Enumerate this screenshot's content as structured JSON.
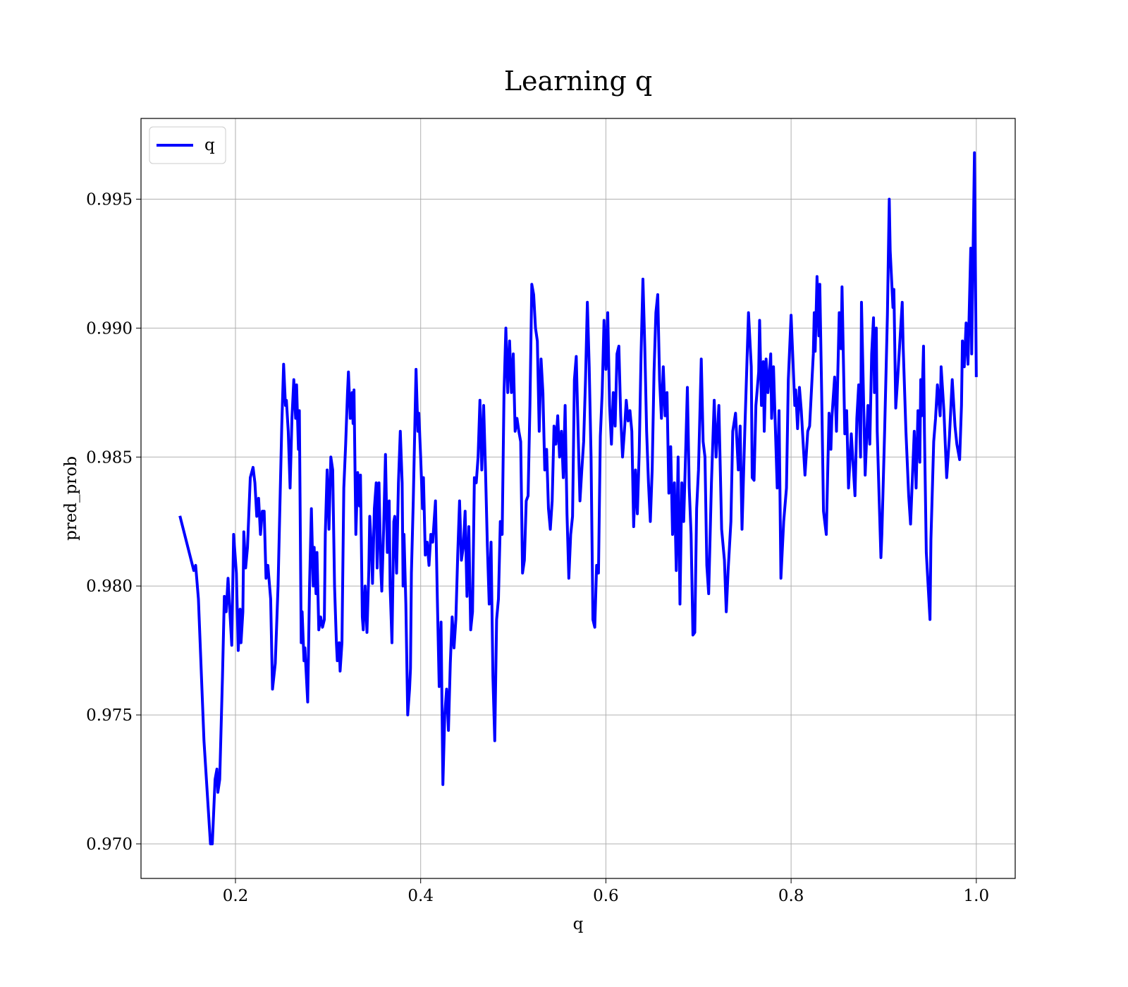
{
  "chart_data": {
    "type": "line",
    "title": "Learning q",
    "xlabel": "q",
    "ylabel": "pred_prob",
    "x": [
      0.14,
      0.155,
      0.157,
      0.16,
      0.166,
      0.173,
      0.175,
      0.178,
      0.18,
      0.181,
      0.183,
      0.186,
      0.188,
      0.19,
      0.192,
      0.194,
      0.196,
      0.198,
      0.201,
      0.203,
      0.205,
      0.206,
      0.208,
      0.209,
      0.211,
      0.213,
      0.216,
      0.219,
      0.221,
      0.223,
      0.225,
      0.227,
      0.229,
      0.231,
      0.233,
      0.235,
      0.238,
      0.24,
      0.243,
      0.246,
      0.248,
      0.25,
      0.252,
      0.254,
      0.255,
      0.257,
      0.259,
      0.261,
      0.263,
      0.265,
      0.266,
      0.268,
      0.269,
      0.271,
      0.272,
      0.274,
      0.275,
      0.278,
      0.28,
      0.282,
      0.284,
      0.285,
      0.287,
      0.288,
      0.29,
      0.292,
      0.294,
      0.296,
      0.297,
      0.299,
      0.301,
      0.303,
      0.305,
      0.307,
      0.309,
      0.31,
      0.312,
      0.313,
      0.315,
      0.317,
      0.319,
      0.321,
      0.322,
      0.324,
      0.326,
      0.327,
      0.328,
      0.33,
      0.332,
      0.334,
      0.335,
      0.337,
      0.338,
      0.34,
      0.342,
      0.344,
      0.345,
      0.347,
      0.348,
      0.35,
      0.352,
      0.353,
      0.355,
      0.357,
      0.358,
      0.36,
      0.362,
      0.364,
      0.366,
      0.367,
      0.369,
      0.371,
      0.372,
      0.374,
      0.376,
      0.378,
      0.38,
      0.381,
      0.382,
      0.384,
      0.386,
      0.388,
      0.389,
      0.39,
      0.392,
      0.393,
      0.395,
      0.397,
      0.398,
      0.4,
      0.402,
      0.403,
      0.405,
      0.407,
      0.409,
      0.411,
      0.413,
      0.416,
      0.418,
      0.42,
      0.422,
      0.424,
      0.426,
      0.428,
      0.43,
      0.432,
      0.434,
      0.436,
      0.438,
      0.44,
      0.442,
      0.444,
      0.446,
      0.448,
      0.45,
      0.452,
      0.454,
      0.456,
      0.458,
      0.46,
      0.462,
      0.464,
      0.466,
      0.468,
      0.47,
      0.472,
      0.474,
      0.476,
      0.478,
      0.48,
      0.482,
      0.484,
      0.486,
      0.488,
      0.49,
      0.492,
      0.494,
      0.496,
      0.498,
      0.5,
      0.502,
      0.504,
      0.506,
      0.508,
      0.51,
      0.512,
      0.514,
      0.516,
      0.518,
      0.52,
      0.522,
      0.524,
      0.526,
      0.528,
      0.53,
      0.532,
      0.534,
      0.536,
      0.538,
      0.54,
      0.542,
      0.544,
      0.546,
      0.548,
      0.55,
      0.552,
      0.554,
      0.556,
      0.558,
      0.56,
      0.562,
      0.564,
      0.566,
      0.568,
      0.57,
      0.572,
      0.574,
      0.576,
      0.578,
      0.58,
      0.582,
      0.584,
      0.586,
      0.588,
      0.59,
      0.592,
      0.594,
      0.596,
      0.598,
      0.6,
      0.602,
      0.604,
      0.606,
      0.608,
      0.61,
      0.612,
      0.614,
      0.616,
      0.618,
      0.62,
      0.622,
      0.624,
      0.626,
      0.628,
      0.63,
      0.632,
      0.634,
      0.636,
      0.638,
      0.64,
      0.642,
      0.644,
      0.646,
      0.648,
      0.65,
      0.652,
      0.654,
      0.656,
      0.658,
      0.66,
      0.662,
      0.664,
      0.666,
      0.668,
      0.67,
      0.672,
      0.674,
      0.676,
      0.678,
      0.68,
      0.682,
      0.684,
      0.686,
      0.688,
      0.69,
      0.692,
      0.694,
      0.696,
      0.698,
      0.7,
      0.703,
      0.705,
      0.707,
      0.709,
      0.711,
      0.714,
      0.717,
      0.719,
      0.722,
      0.725,
      0.728,
      0.73,
      0.732,
      0.735,
      0.737,
      0.74,
      0.743,
      0.745,
      0.747,
      0.75,
      0.754,
      0.757,
      0.758,
      0.76,
      0.762,
      0.765,
      0.766,
      0.768,
      0.77,
      0.771,
      0.773,
      0.775,
      0.778,
      0.779,
      0.781,
      0.785,
      0.787,
      0.789,
      0.792,
      0.795,
      0.797,
      0.8,
      0.804,
      0.805,
      0.807,
      0.809,
      0.811,
      0.815,
      0.818,
      0.82,
      0.824,
      0.825,
      0.826,
      0.828,
      0.83,
      0.831,
      0.833,
      0.835,
      0.838,
      0.841,
      0.843,
      0.844,
      0.847,
      0.849,
      0.852,
      0.854,
      0.855,
      0.858,
      0.86,
      0.862,
      0.865,
      0.869,
      0.871,
      0.873,
      0.875,
      0.876,
      0.88,
      0.883,
      0.885,
      0.887,
      0.889,
      0.89,
      0.892,
      0.893,
      0.895,
      0.897,
      0.898,
      0.901,
      0.904,
      0.906,
      0.907,
      0.91,
      0.911,
      0.913,
      0.915,
      0.92,
      0.921,
      0.924,
      0.927,
      0.929,
      0.933,
      0.935,
      0.937,
      0.939,
      0.94,
      0.941,
      0.943,
      0.944,
      0.946,
      0.948,
      0.95,
      0.951,
      0.954,
      0.956,
      0.958,
      0.961,
      0.962,
      0.965,
      0.968,
      0.971,
      0.974,
      0.977,
      0.979,
      0.982,
      0.984,
      0.985,
      0.987,
      0.989,
      0.991,
      0.994,
      0.995,
      0.998,
      1.0
    ],
    "series": [
      {
        "name": "q",
        "color": "#0000ff",
        "values": [
          0.98272,
          0.9806,
          0.9808,
          0.9795,
          0.974,
          0.97,
          0.97,
          0.9725,
          0.9729,
          0.972,
          0.9725,
          0.9765,
          0.9796,
          0.979,
          0.9803,
          0.979,
          0.9777,
          0.982,
          0.9805,
          0.9775,
          0.9791,
          0.9778,
          0.979,
          0.9821,
          0.9807,
          0.9815,
          0.9842,
          0.9846,
          0.984,
          0.9827,
          0.9834,
          0.982,
          0.9829,
          0.9829,
          0.9803,
          0.9808,
          0.9795,
          0.976,
          0.977,
          0.98,
          0.9831,
          0.9862,
          0.9886,
          0.987,
          0.9872,
          0.986,
          0.9838,
          0.9865,
          0.988,
          0.9865,
          0.9878,
          0.9853,
          0.9868,
          0.9778,
          0.979,
          0.9771,
          0.9776,
          0.9755,
          0.98,
          0.983,
          0.98,
          0.9815,
          0.9797,
          0.9813,
          0.9783,
          0.9788,
          0.9784,
          0.9787,
          0.982,
          0.9845,
          0.9822,
          0.985,
          0.9845,
          0.98,
          0.9778,
          0.9771,
          0.9778,
          0.9767,
          0.9778,
          0.9838,
          0.9855,
          0.9875,
          0.9883,
          0.9865,
          0.9875,
          0.9863,
          0.9876,
          0.982,
          0.9844,
          0.9831,
          0.9843,
          0.9788,
          0.9783,
          0.98,
          0.9782,
          0.9806,
          0.9827,
          0.9813,
          0.9801,
          0.983,
          0.984,
          0.9807,
          0.984,
          0.9806,
          0.9798,
          0.9822,
          0.9851,
          0.9813,
          0.9833,
          0.98,
          0.9778,
          0.9825,
          0.9827,
          0.9805,
          0.984,
          0.986,
          0.984,
          0.98,
          0.982,
          0.9793,
          0.975,
          0.976,
          0.9768,
          0.9805,
          0.9833,
          0.985,
          0.9884,
          0.986,
          0.9867,
          0.985,
          0.983,
          0.9842,
          0.9812,
          0.9817,
          0.9808,
          0.982,
          0.9817,
          0.9833,
          0.9795,
          0.9761,
          0.9786,
          0.9723,
          0.975,
          0.976,
          0.9744,
          0.977,
          0.9788,
          0.9776,
          0.9787,
          0.9812,
          0.9833,
          0.981,
          0.9815,
          0.9829,
          0.9796,
          0.9823,
          0.9783,
          0.979,
          0.9842,
          0.984,
          0.985,
          0.9872,
          0.9845,
          0.987,
          0.9845,
          0.9816,
          0.9793,
          0.9817,
          0.9765,
          0.974,
          0.9787,
          0.9795,
          0.9825,
          0.982,
          0.9875,
          0.99,
          0.9875,
          0.9895,
          0.9875,
          0.989,
          0.986,
          0.9865,
          0.986,
          0.9856,
          0.9805,
          0.981,
          0.9833,
          0.9835,
          0.987,
          0.9917,
          0.9913,
          0.99,
          0.9895,
          0.986,
          0.9888,
          0.9875,
          0.9845,
          0.9853,
          0.983,
          0.9822,
          0.9833,
          0.9862,
          0.9855,
          0.9866,
          0.985,
          0.986,
          0.9842,
          0.987,
          0.9828,
          0.9803,
          0.982,
          0.9827,
          0.988,
          0.9889,
          0.986,
          0.9833,
          0.9845,
          0.9856,
          0.988,
          0.991,
          0.9885,
          0.985,
          0.9787,
          0.9784,
          0.9808,
          0.9805,
          0.9858,
          0.9875,
          0.9903,
          0.9884,
          0.9906,
          0.987,
          0.9855,
          0.9875,
          0.9862,
          0.989,
          0.9893,
          0.9866,
          0.985,
          0.986,
          0.9872,
          0.9864,
          0.9868,
          0.986,
          0.9823,
          0.9845,
          0.9828,
          0.9852,
          0.989,
          0.9919,
          0.9893,
          0.986,
          0.984,
          0.9825,
          0.9845,
          0.9883,
          0.9906,
          0.9913,
          0.988,
          0.9865,
          0.9885,
          0.9866,
          0.9875,
          0.9836,
          0.9854,
          0.982,
          0.984,
          0.9806,
          0.985,
          0.9793,
          0.984,
          0.9825,
          0.985,
          0.9877,
          0.9838,
          0.982,
          0.9781,
          0.9782,
          0.983,
          0.9845,
          0.9888,
          0.9856,
          0.985,
          0.9808,
          0.9797,
          0.984,
          0.9872,
          0.985,
          0.987,
          0.9822,
          0.981,
          0.979,
          0.9806,
          0.9825,
          0.986,
          0.9867,
          0.9845,
          0.9862,
          0.9822,
          0.986,
          0.9906,
          0.9885,
          0.9842,
          0.9841,
          0.987,
          0.9883,
          0.9903,
          0.987,
          0.9887,
          0.986,
          0.9888,
          0.9875,
          0.989,
          0.9865,
          0.9885,
          0.9838,
          0.9868,
          0.9803,
          0.9825,
          0.9838,
          0.988,
          0.9905,
          0.987,
          0.9876,
          0.9861,
          0.9877,
          0.9868,
          0.9843,
          0.986,
          0.9862,
          0.989,
          0.9906,
          0.9891,
          0.992,
          0.9897,
          0.9917,
          0.9875,
          0.9829,
          0.982,
          0.9867,
          0.9853,
          0.9865,
          0.9881,
          0.986,
          0.9906,
          0.9892,
          0.9916,
          0.9859,
          0.9868,
          0.9838,
          0.9859,
          0.9835,
          0.9865,
          0.9878,
          0.985,
          0.991,
          0.9843,
          0.987,
          0.9855,
          0.989,
          0.9904,
          0.9875,
          0.99,
          0.986,
          0.9835,
          0.9811,
          0.982,
          0.986,
          0.9905,
          0.995,
          0.993,
          0.9908,
          0.9915,
          0.9869,
          0.988,
          0.991,
          0.9893,
          0.986,
          0.9835,
          0.9824,
          0.986,
          0.9838,
          0.9868,
          0.9848,
          0.988,
          0.9866,
          0.9893,
          0.986,
          0.9813,
          0.98,
          0.9787,
          0.9818,
          0.9856,
          0.9865,
          0.9878,
          0.9866,
          0.9885,
          0.9868,
          0.9842,
          0.9858,
          0.988,
          0.9862,
          0.9855,
          0.9849,
          0.987,
          0.9895,
          0.9885,
          0.9902,
          0.9886,
          0.9931,
          0.989,
          0.9968,
          0.9881
        ]
      }
    ],
    "xlim": [
      0.098,
      1.042
    ],
    "ylim": [
      0.96866,
      0.99813
    ],
    "xticks": [
      0.2,
      0.4,
      0.6,
      0.8,
      {
        "value": 1.0,
        "label": "1.0"
      }
    ],
    "yticks": [
      {
        "value": 0.97,
        "label": "0.970"
      },
      {
        "value": 0.975,
        "label": "0.975"
      },
      {
        "value": 0.98,
        "label": "0.980"
      },
      {
        "value": 0.985,
        "label": "0.985"
      },
      {
        "value": 0.99,
        "label": "0.990"
      },
      {
        "value": 0.995,
        "label": "0.995"
      }
    ],
    "grid": true,
    "legend": "upper left"
  }
}
